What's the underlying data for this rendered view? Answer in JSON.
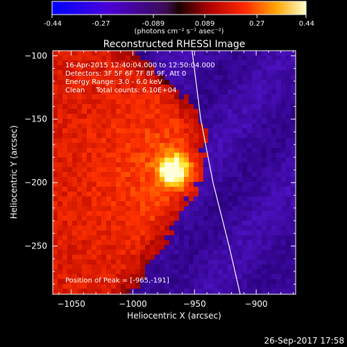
{
  "chart_data": {
    "type": "heatmap",
    "title": "Reconstructed RHESSI Image",
    "xlabel": "Heliocentric X (arcsec)",
    "ylabel": "Heliocentric Y (arcsec)",
    "xlim": [
      -1065,
      -868
    ],
    "ylim": [
      -288,
      -96
    ],
    "x_ticks": [
      -1050,
      -1000,
      -950,
      -900
    ],
    "y_ticks": [
      -250,
      -200,
      -150,
      -100
    ],
    "colorbar": {
      "ticks": [
        "-0.44",
        "-0.27",
        "-0.089",
        "0.089",
        "0.27",
        "0.44"
      ],
      "range": [
        -0.44,
        0.44
      ],
      "unit_label": "(photons cm⁻² s⁻¹ asec⁻²)"
    },
    "annotations": [
      "16-Apr-2015 12:40:04.000 to 12:50:04.000",
      "Detectors: 3F 5F 6F 7F 8F 9F, Att 0",
      "Energy Range: 3.0 - 6.0 keV",
      "Clean     Total counts: 6.10E+04"
    ],
    "peak_label": "Position of Peak = [-965,-191]",
    "peak": {
      "x": -965,
      "y": -191
    },
    "limb_curve": [
      [
        -952,
        -96
      ],
      [
        -945,
        -150
      ],
      [
        -935,
        -200
      ],
      [
        -922,
        -250
      ],
      [
        -913,
        -288
      ]
    ],
    "colors": {
      "background": "#000000",
      "foreground": "#ffffff"
    }
  },
  "footer": {
    "timestamp": "26-Sep-2017 17:58"
  }
}
